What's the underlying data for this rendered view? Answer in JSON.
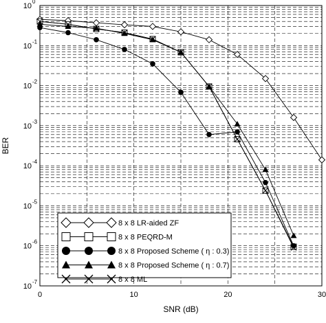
{
  "chart_data": {
    "type": "line",
    "xlabel": "SNR (dB)",
    "ylabel": "BER",
    "xlim": [
      0,
      30
    ],
    "ylim": [
      1e-07,
      1
    ],
    "y_scale": "log",
    "grid": true,
    "legend_position": "bottom-left",
    "x_ticks": [
      "0",
      "10",
      "20",
      "30"
    ],
    "y_ticks": [
      {
        "base": "10",
        "exp": "0"
      },
      {
        "base": "10",
        "exp": "-1"
      },
      {
        "base": "10",
        "exp": "-2"
      },
      {
        "base": "10",
        "exp": "-3"
      },
      {
        "base": "10",
        "exp": "-4"
      },
      {
        "base": "10",
        "exp": "-5"
      },
      {
        "base": "10",
        "exp": "-6"
      },
      {
        "base": "10",
        "exp": "-7"
      }
    ],
    "series": [
      {
        "name": "8 x 8 LR-aided ZF",
        "marker": "diamond-open",
        "x": [
          0,
          3,
          6,
          9,
          12,
          15,
          18,
          21,
          24,
          27,
          30
        ],
        "y": [
          0.45,
          0.42,
          0.37,
          0.33,
          0.3,
          0.22,
          0.14,
          0.06,
          0.015,
          0.0016,
          0.00014
        ]
      },
      {
        "name": "8 x 8 PEQRD-M",
        "marker": "square-open",
        "x": [
          0,
          3,
          6,
          9,
          12,
          15,
          18,
          21,
          24,
          27
        ],
        "y": [
          0.4,
          0.34,
          0.26,
          0.21,
          0.145,
          0.068,
          0.0095,
          0.00046,
          2.4e-05,
          9.5e-07
        ]
      },
      {
        "name": "8 x 8 Proposed Scheme ( η : 0.3)",
        "marker": "circle-filled",
        "x": [
          0,
          3,
          6,
          9,
          12,
          15,
          18,
          21,
          24,
          27
        ],
        "y": [
          0.28,
          0.21,
          0.14,
          0.08,
          0.035,
          0.0068,
          0.0006,
          0.0007,
          3.8e-05,
          1e-06
        ]
      },
      {
        "name": "8 x 8 Proposed Scheme ( η : 0.7)",
        "marker": "triangle-filled",
        "x": [
          0,
          3,
          6,
          9,
          12,
          15,
          18,
          21,
          24,
          27
        ],
        "y": [
          0.34,
          0.3,
          0.27,
          0.2,
          0.14,
          0.068,
          0.0095,
          0.0011,
          8e-05,
          1.8e-06
        ]
      },
      {
        "name": "8 x 8 ML",
        "marker": "x",
        "x": [
          0,
          3,
          6,
          9,
          12,
          15,
          18,
          21,
          24,
          27
        ],
        "y": [
          0.4,
          0.34,
          0.26,
          0.21,
          0.145,
          0.068,
          0.0095,
          0.00046,
          2.4e-05,
          9e-07
        ]
      }
    ]
  }
}
